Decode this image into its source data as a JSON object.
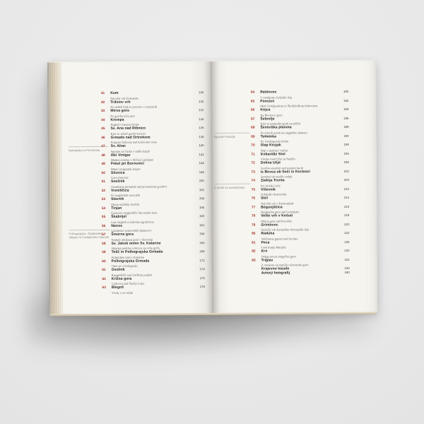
{
  "scene": {
    "background_color": "#e9e9e9"
  },
  "book": {
    "accent_red": "#a62f26",
    "paper_color": "#f5f4ef",
    "left_page": {
      "side_labels": [
        {
          "lines": [
            "Notranjska in Primorska"
          ]
        },
        {
          "lines": [
            "Polhograjsko, Škofjeloško,",
            "Idrijsko in Cerkljansko hribovje"
          ]
        }
      ],
      "entries": [
        {
          "num": "41",
          "title": "Kum",
          "subtitle": "Najvišji vrh Dolenjske",
          "page": "128"
        },
        {
          "num": "42",
          "title": "Trdinov vrh",
          "subtitle": "Po sledeh bajk in povesti v Gorjancih",
          "page": "130"
        },
        {
          "num": "43",
          "title": "Mirna gora",
          "subtitle": "Po gozdni učni poti",
          "page": "132"
        },
        {
          "num": "44",
          "title": "Krempa",
          "subtitle": "Pogled v kanjon Kolpe",
          "page": "134"
        },
        {
          "num": "45",
          "title": "Sv. Ana nad Ribnico",
          "subtitle": "Kjer so nekoč goreli kresovi",
          "page": "136"
        },
        {
          "num": "46",
          "title": "Grmada nad Ortnekom",
          "subtitle": "Prijazno hribovje nad kočevsko cesto",
          "page": "138"
        },
        {
          "num": "47",
          "title": "Sv. Ahac",
          "subtitle": "Spomin na Turke v naših krajih",
          "page": "140"
        },
        {
          "num": "48",
          "title": "Iški Vintgar",
          "subtitle": "Hladna soteska v bližini Ljubljane",
          "page": "142"
        },
        {
          "num": "49",
          "title": "Pekel pri Borovnici",
          "subtitle": "Mimo razigranih slapov",
          "page": "144"
        },
        {
          "num": "50",
          "title": "Slivnica",
          "subtitle": "Gora čarovnic",
          "page": "148"
        },
        {
          "num": "51",
          "title": "Snežnik",
          "subtitle": "Osamljena piramida nad prostranimi gozdovi",
          "page": "150"
        },
        {
          "num": "52",
          "title": "Vremščica",
          "subtitle": "Po razglednih travnikih",
          "page": "152"
        },
        {
          "num": "53",
          "title": "Slavnik",
          "subtitle": "Morju najbližji tisočak",
          "page": "154"
        },
        {
          "num": "54",
          "title": "Tinjan",
          "subtitle": "Čudovito razgledišče Slovenske Istre",
          "page": "156"
        },
        {
          "num": "55",
          "title": "Škabrijel",
          "subtitle": "Lep razgled in žalostna zgodovina",
          "page": "160"
        },
        {
          "num": "56",
          "title": "Nanos",
          "subtitle": "Ljubljenec primorskih planincev",
          "page": "162"
        },
        {
          "num": "57",
          "title": "Šmarna gora",
          "subtitle": "Najbolj obiskana gora v Sloveniji",
          "page": "164"
        },
        {
          "num": "58",
          "title": "Sv. Jakob mimo Sv. Katarine",
          "subtitle": "Skladna podoba cerkvice na vrhu griča",
          "page": "166"
        },
        {
          "num": "59",
          "title": "Tošč in Polhograjska Grmada",
          "subtitle": "Priljubljen izlet s Katarine",
          "page": "168"
        },
        {
          "num": "60",
          "title": "Polhograjska Grmada",
          "subtitle": "Okus po visokogorju",
          "page": "172"
        },
        {
          "num": "61",
          "title": "Osolnik",
          "subtitle": "Razgledišče nad Sorškim poljem",
          "page": "174"
        },
        {
          "num": "62",
          "title": "Križna gora",
          "subtitle": "Cerkvica nad Škofjo Loko",
          "page": "176"
        },
        {
          "num": "63",
          "title": "Blegoš",
          "subtitle": "Visok, a ne težak",
          "page": "178"
        }
      ]
    },
    "right_page": {
      "side_labels": [
        {
          "lines": [
            "Zgornje Posočje"
          ]
        },
        {
          "lines": [
            "Z otroki na dvatisočake"
          ]
        }
      ],
      "entries": [
        {
          "num": "64",
          "title": "Ratitovec",
          "subtitle": "V predgorju Julijskih Alp",
          "page": "180"
        },
        {
          "num": "65",
          "title": "Porezen",
          "subtitle": "Med Cerkljanskim in Škofjeloškim hribovjem",
          "page": "182"
        },
        {
          "num": "66",
          "title": "Kojca",
          "subtitle": "Na Bevkovo goro",
          "page": "184"
        },
        {
          "num": "67",
          "title": "Šebrelje",
          "subtitle": "Kjer so praljudje igrali na piščal",
          "page": "186"
        },
        {
          "num": "68",
          "title": "Šentviška planota",
          "subtitle": "Po mirnih poteh na razgledno planoto",
          "page": "188"
        },
        {
          "num": "69",
          "title": "Tolminka",
          "subtitle": "Po visokogorski dolini",
          "page": "190"
        },
        {
          "num": "70",
          "title": "Slap Kozjak",
          "subtitle": "Slap v podorni votlini",
          "page": "194"
        },
        {
          "num": "71",
          "title": "Kobariški Stol",
          "subtitle": "Visoko med Učjo in Nadižo",
          "page": "196"
        },
        {
          "num": "72",
          "title": "Dolina Učje",
          "subtitle": "Sončne senožeti nad tesnimi koriti",
          "page": "198"
        },
        {
          "num": "73",
          "title": "Iz Bovca ob Soči in Koritnici",
          "subtitle": "Sprehod ob mrzlih vodah",
          "page": "202"
        },
        {
          "num": "74",
          "title": "Zadnja Trenta",
          "subtitle": "Pri zibelki Soče",
          "page": "204"
        },
        {
          "num": "75",
          "title": "Viševnik",
          "subtitle": "Pokljuški dvatisočak",
          "page": "210"
        },
        {
          "num": "76",
          "title": "Stol",
          "subtitle": "Najvišji vrh v Karavankah",
          "page": "212"
        },
        {
          "num": "77",
          "title": "Begunjščica",
          "subtitle": "Razgledna gora nad Gorenjsko",
          "page": "214"
        },
        {
          "num": "78",
          "title": "Veliki vrh v Košuti",
          "subtitle": "Mejna gora nad Koroško",
          "page": "218"
        },
        {
          "num": "79",
          "title": "Grintovec",
          "subtitle": "Najvišji vrh Kamniško-Savinjskih Alp",
          "page": "220"
        },
        {
          "num": "80",
          "title": "Raduha",
          "subtitle": "Veličastna gmota nad Savinjo",
          "page": "222"
        },
        {
          "num": "81",
          "title": "Peca",
          "subtitle": "Gora kralja Matjaža",
          "page": "226"
        },
        {
          "num": "82",
          "title": "Krn",
          "subtitle": "Dolga pot na mogočno goro",
          "page": "230"
        },
        {
          "num": "83",
          "title": "Triglav",
          "subtitle": "Z otrokom na najvišjo slovensko goro",
          "page": "232"
        },
        {
          "num": "",
          "title": "Krajevno kazalo",
          "subtitle": "",
          "page": "236"
        },
        {
          "num": "",
          "title": "Avtorji fotografij",
          "subtitle": "",
          "page": "240"
        }
      ]
    }
  }
}
